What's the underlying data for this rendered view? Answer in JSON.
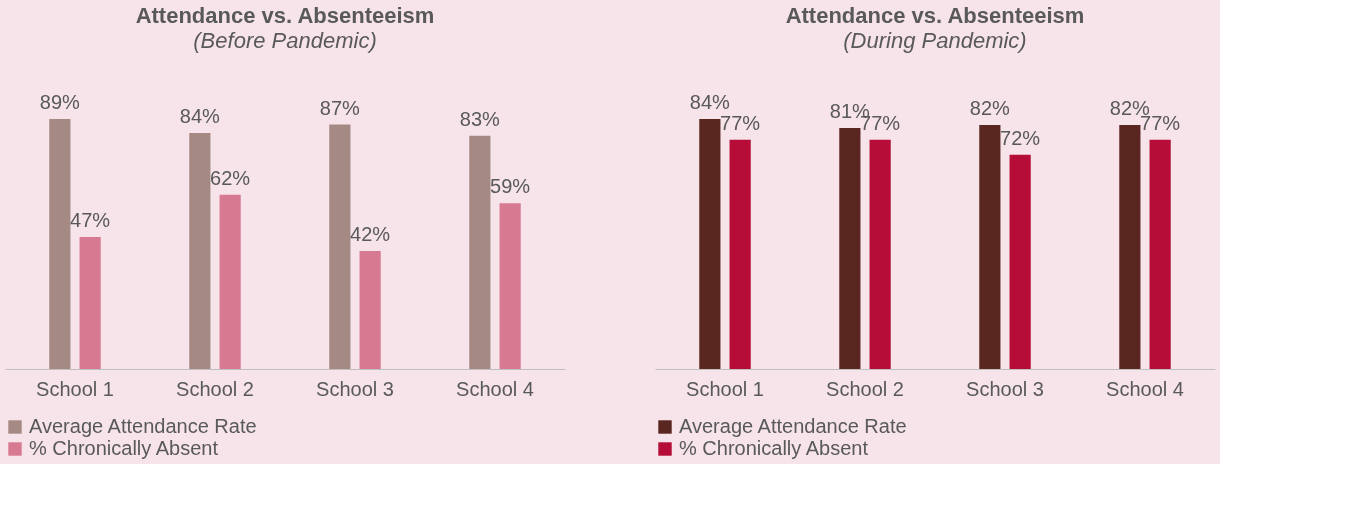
{
  "chart_data": [
    {
      "type": "bar",
      "title": "Attendance vs. Absenteeism",
      "subtitle": "(Before Pandemic)",
      "categories": [
        "School 1",
        "School 2",
        "School 3",
        "School 4"
      ],
      "legend": "bottom",
      "series": [
        {
          "name": "Average Attendance Rate",
          "color": "#a58a84",
          "values": [
            89,
            84,
            87,
            83
          ],
          "value_labels": [
            "89%",
            "84%",
            "87%",
            "83%"
          ]
        },
        {
          "name": "% Chronically Absent",
          "color": "#d87992",
          "values": [
            47,
            62,
            42,
            59
          ],
          "value_labels": [
            "47%",
            "62%",
            "42%",
            "59%"
          ]
        }
      ]
    },
    {
      "type": "bar",
      "title": "Attendance vs. Absenteeism",
      "subtitle": "(During Pandemic)",
      "categories": [
        "School 1",
        "School 2",
        "School 3",
        "School 4"
      ],
      "legend": "bottom",
      "series": [
        {
          "name": "Average Attendance Rate",
          "color": "#5a2620",
          "values": [
            84,
            81,
            82,
            82
          ],
          "value_labels": [
            "84%",
            "81%",
            "82%",
            "82%"
          ]
        },
        {
          "name": "% Chronically Absent",
          "color": "#b50d38",
          "values": [
            77,
            77,
            72,
            77
          ],
          "value_labels": [
            "77%",
            "77%",
            "72%",
            "77%"
          ]
        }
      ]
    }
  ]
}
